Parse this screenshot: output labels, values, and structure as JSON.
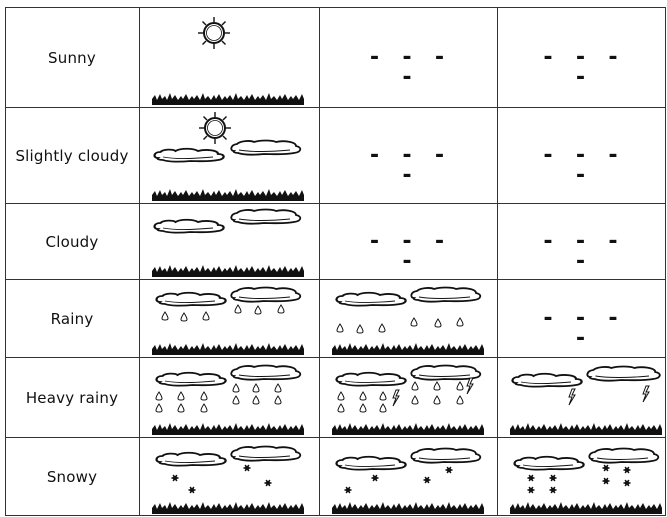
{
  "rows": [
    {
      "label": "Sunny",
      "cells": [
        "sunny",
        "none",
        "none"
      ]
    },
    {
      "label": "Slightly  cloudy",
      "cells": [
        "slightly-cloudy",
        "none",
        "none"
      ]
    },
    {
      "label": "Cloudy",
      "cells": [
        "cloudy",
        "none",
        "none"
      ]
    },
    {
      "label": "Rainy",
      "cells": [
        "rainy",
        "rainy-more",
        "none"
      ]
    },
    {
      "label": "Heavy rainy",
      "cells": [
        "heavy-rainy",
        "heavy-rainy-lightning",
        "storm-lightning"
      ]
    },
    {
      "label": "Snowy",
      "cells": [
        "snowy",
        "snowy-more",
        "snowy-heavy"
      ]
    }
  ],
  "empty_marker": "- - - -",
  "colors": {
    "ink": "#111111",
    "grid": "#333333",
    "background": "#ffffff"
  }
}
